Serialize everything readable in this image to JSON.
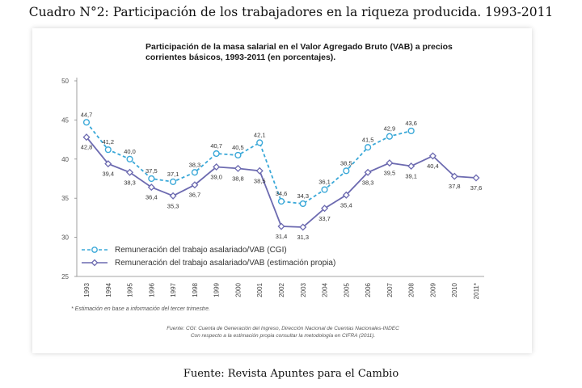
{
  "page": {
    "title": "Cuadro N°2: Participación de los trabajadores en la riqueza producida. 1993-2011",
    "source": "Fuente: Revista Apuntes para el Cambio"
  },
  "colors": {
    "cgi": "#3aa8d8",
    "propia": "#6c6ab0",
    "axis": "#888888",
    "grid": "#d9d9d9"
  },
  "chart_data": {
    "type": "line",
    "title_lines": [
      "Participación de la masa salarial en el Valor Agregado Bruto (VAB) a precios",
      "corrientes básicos, 1993-2011 (en porcentajes)."
    ],
    "categories": [
      "1993",
      "1994",
      "1995",
      "1996",
      "1997",
      "1998",
      "1999",
      "2000",
      "2001",
      "2002",
      "2003",
      "2004",
      "2005",
      "2006",
      "2007",
      "2008",
      "2009",
      "2010",
      "2011*"
    ],
    "ylim": [
      25,
      50
    ],
    "yticks": [
      25,
      30,
      35,
      40,
      45,
      50
    ],
    "grid": false,
    "legend_position": "bottom-left",
    "series": [
      {
        "name": "Remuneración del trabajo asalariado/VAB (CGI)",
        "style": "dashed",
        "color_key": "cgi",
        "values": [
          44.7,
          41.2,
          40.0,
          37.5,
          37.1,
          38.3,
          40.7,
          40.5,
          42.1,
          34.6,
          34.3,
          36.1,
          38.5,
          41.5,
          42.9,
          43.6,
          null,
          null,
          null
        ],
        "labels": [
          "44,7",
          "41,2",
          "40,0",
          "37,5",
          "37,1",
          "38,3",
          "40,7",
          "40,5",
          "42,1",
          "34,6",
          "34,3",
          "36,1",
          "38,5",
          "41,5",
          "42,9",
          "43,6",
          null,
          null,
          null
        ]
      },
      {
        "name": "Remuneración del trabajo asalariado/VAB (estimación propia)",
        "style": "solid",
        "color_key": "propia",
        "values": [
          42.8,
          39.4,
          38.3,
          36.4,
          35.3,
          36.7,
          39.0,
          38.8,
          38.5,
          31.4,
          31.3,
          33.7,
          35.4,
          38.3,
          39.5,
          39.1,
          40.4,
          37.8,
          37.6
        ],
        "labels": [
          "42,8",
          "39,4",
          "38,3",
          "36,4",
          "35,3",
          "36,7",
          "39,0",
          "38,8",
          "38,5",
          "31,4",
          "31,3",
          "33,7",
          "35,4",
          "38,3",
          "39,5",
          "39,1",
          "40,4",
          "37,8",
          "37,6"
        ]
      }
    ],
    "footnote": "* Estimación en base a información del tercer trimestre.",
    "source_lines": [
      "Fuente: CGI: Cuenta de Generación del Ingreso, Dirección Nacional de Cuentas Nacionales-INDEC",
      "Con respecto a la estimación propia consultar la metodología en CIFRA (2011)."
    ]
  }
}
